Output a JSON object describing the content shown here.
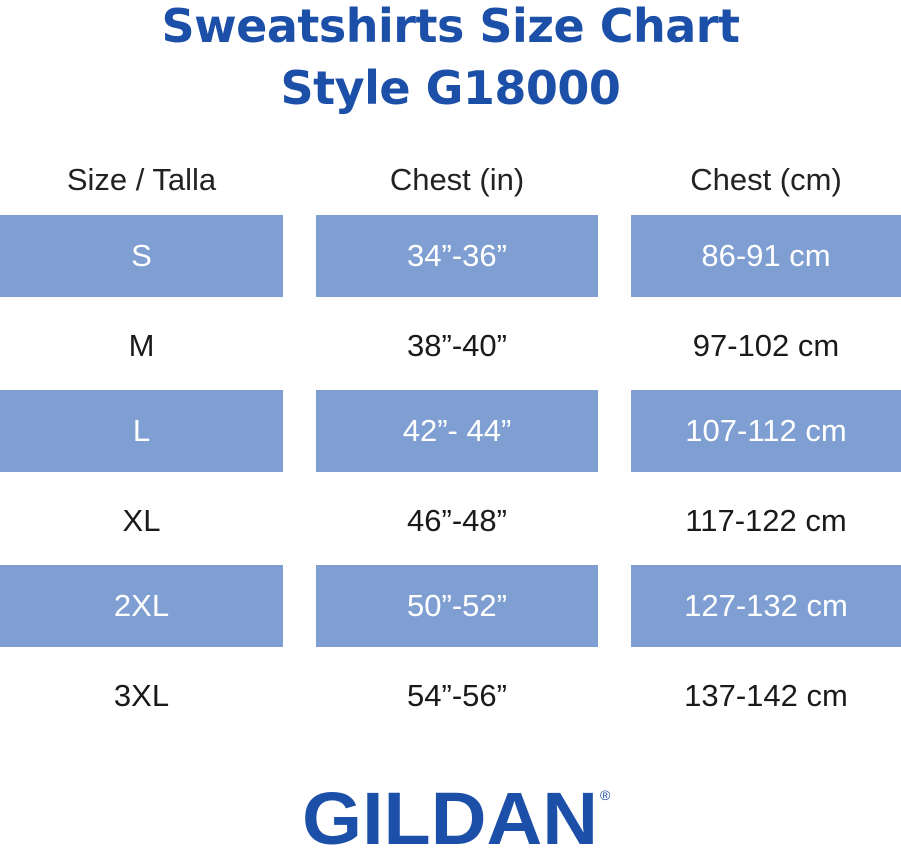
{
  "title": {
    "line1": "Sweatshirts Size Chart",
    "line2": "Style G18000"
  },
  "table": {
    "headers": [
      "Size / Talla",
      "Chest (in)",
      "Chest (cm)"
    ],
    "rows": [
      {
        "size": "S",
        "chest_in": "34”-36”",
        "chest_cm": "86-91 cm",
        "shaded": true
      },
      {
        "size": "M",
        "chest_in": "38”-40”",
        "chest_cm": "97-102 cm",
        "shaded": false
      },
      {
        "size": "L",
        "chest_in": "42”- 44”",
        "chest_cm": "107-112 cm",
        "shaded": true
      },
      {
        "size": "XL",
        "chest_in": "46”-48”",
        "chest_cm": "117-122 cm",
        "shaded": false
      },
      {
        "size": "2XL",
        "chest_in": "50”-52”",
        "chest_cm": "127-132 cm",
        "shaded": true
      },
      {
        "size": "3XL",
        "chest_in": "54”-56”",
        "chest_cm": "137-142 cm",
        "shaded": false
      }
    ]
  },
  "brand": {
    "name": "GILDAN",
    "registered_mark": "®"
  },
  "colors": {
    "title": "#1c4fa8",
    "row_shade": "#7f9fd2",
    "brand": "#1c4fa8"
  }
}
